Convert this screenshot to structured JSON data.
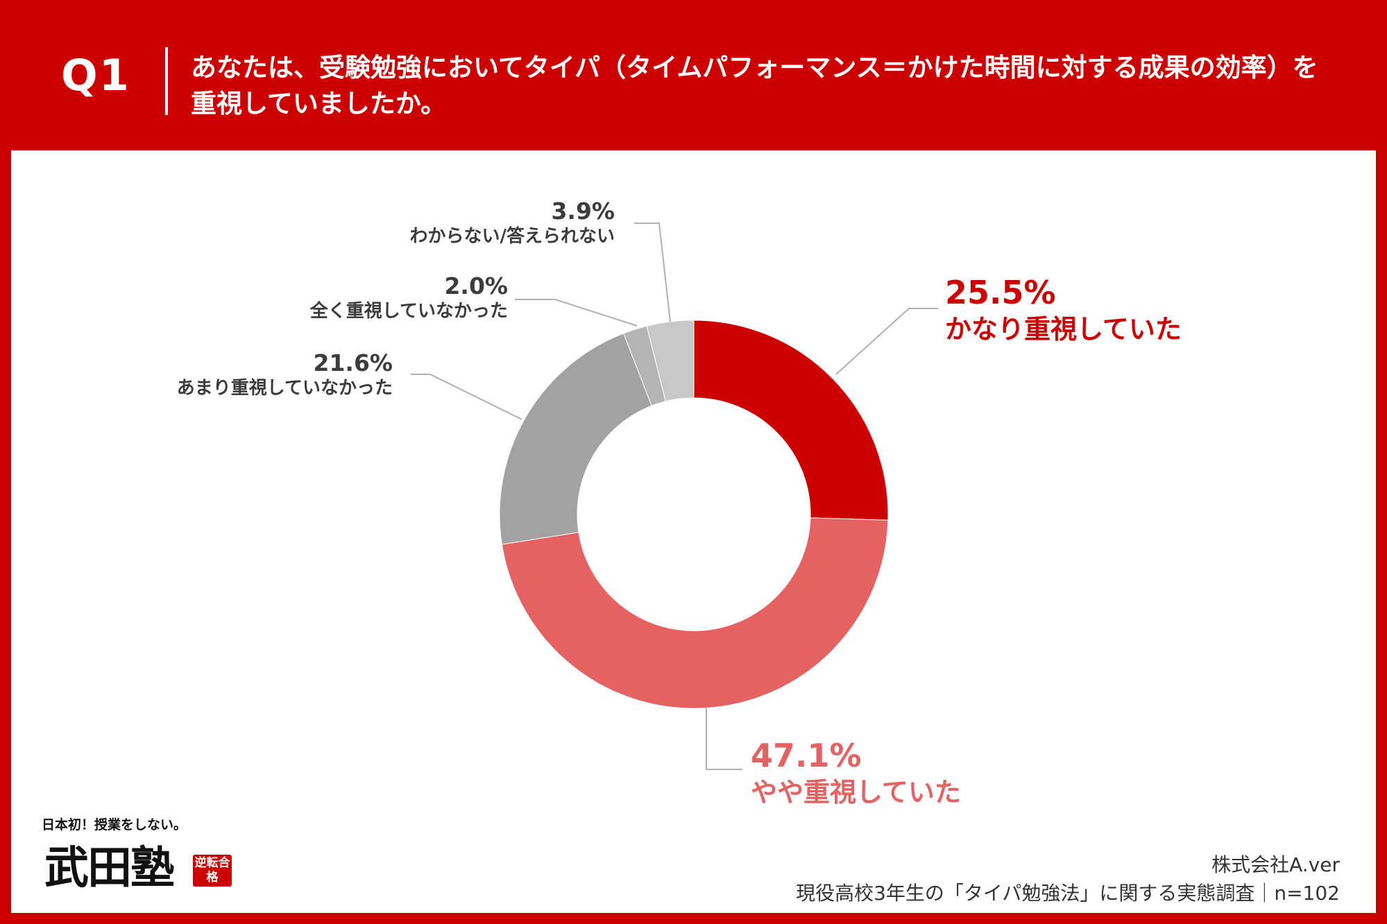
{
  "header": {
    "q_label": "Q1",
    "question": "あなたは、受験勉強においてタイパ（タイムパフォーマンス＝かけた時間に対する成果の効率）を重視していましたか。"
  },
  "chart_data": {
    "type": "pie",
    "donut": true,
    "title": "",
    "series": [
      {
        "label": "かなり重視していた",
        "value": 25.5,
        "value_text": "25.5%",
        "color": "#cc0000"
      },
      {
        "label": "やや重視していた",
        "value": 47.1,
        "value_text": "47.1%",
        "color": "#e56263"
      },
      {
        "label": "あまり重視していなかった",
        "value": 21.6,
        "value_text": "21.6%",
        "color": "#a2a2a2"
      },
      {
        "label": "全く重視していなかった",
        "value": 2.0,
        "value_text": "2.0%",
        "color": "#b4b4b4"
      },
      {
        "label": "わからない/答えられない",
        "value": 3.9,
        "value_text": "3.9%",
        "color": "#c8c8c8"
      }
    ],
    "start_angle": "top",
    "direction": "clockwise",
    "legend": "none",
    "labels": "outside with leader lines"
  },
  "colors": {
    "brand_red": "#cc0000",
    "leader_line": "#b0b0b0",
    "label_gray": "#3c3c3c"
  },
  "logo": {
    "tagline": "日本初！授業をしない。",
    "name": "武田塾",
    "stamp": "逆転合格"
  },
  "footer": {
    "company": "株式会社A.ver",
    "survey": "現役高校3年生の「タイパ勉強法」に関する実態調査｜n=102"
  }
}
